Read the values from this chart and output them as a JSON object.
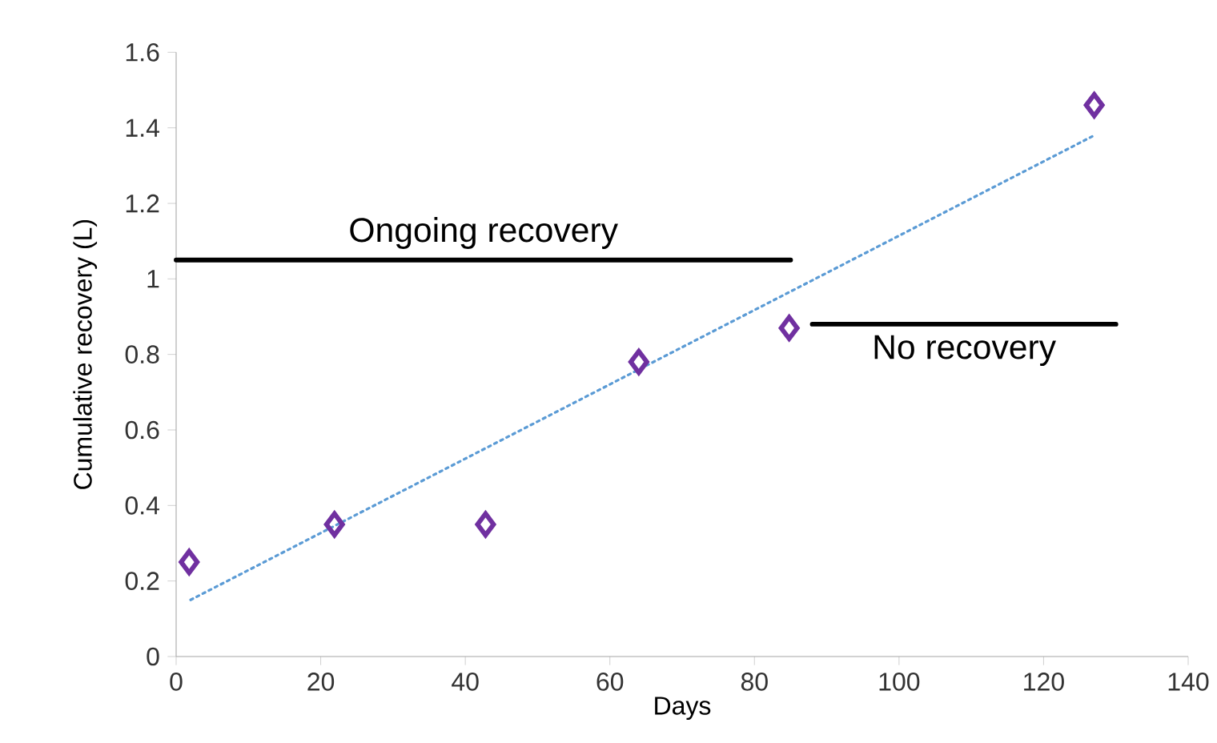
{
  "chart_data": {
    "type": "scatter",
    "xlabel": "Days",
    "ylabel": "Cumulative recovery (L)",
    "xlim": [
      0,
      140
    ],
    "ylim": [
      0,
      1.6
    ],
    "xticks": [
      0,
      20,
      40,
      60,
      80,
      100,
      120,
      140
    ],
    "yticks": [
      0,
      0.2,
      0.4,
      0.6,
      0.8,
      1,
      1.2,
      1.4,
      1.6
    ],
    "grid": false,
    "series": [
      {
        "marker": "diamond",
        "color": "#7030a0",
        "x": [
          1.8,
          21.9,
          42.8,
          64,
          84.8,
          127
        ],
        "values": [
          0.25,
          0.35,
          0.35,
          0.78,
          0.87,
          1.46
        ]
      },
      {
        "type": "line",
        "line_style": "dotted",
        "color": "#5b9bd5",
        "x": [
          2,
          127
        ],
        "values": [
          0.15,
          1.38
        ]
      },
      {
        "type": "line",
        "line_style": "solid",
        "name": "Ongoing recovery",
        "color": "#000000",
        "x": [
          0,
          85
        ],
        "values": [
          1.05,
          1.05
        ]
      },
      {
        "type": "line",
        "line_style": "solid",
        "name": "No recovery",
        "color": "#000000",
        "x": [
          88,
          130
        ],
        "values": [
          0.88,
          0.88
        ]
      }
    ]
  }
}
